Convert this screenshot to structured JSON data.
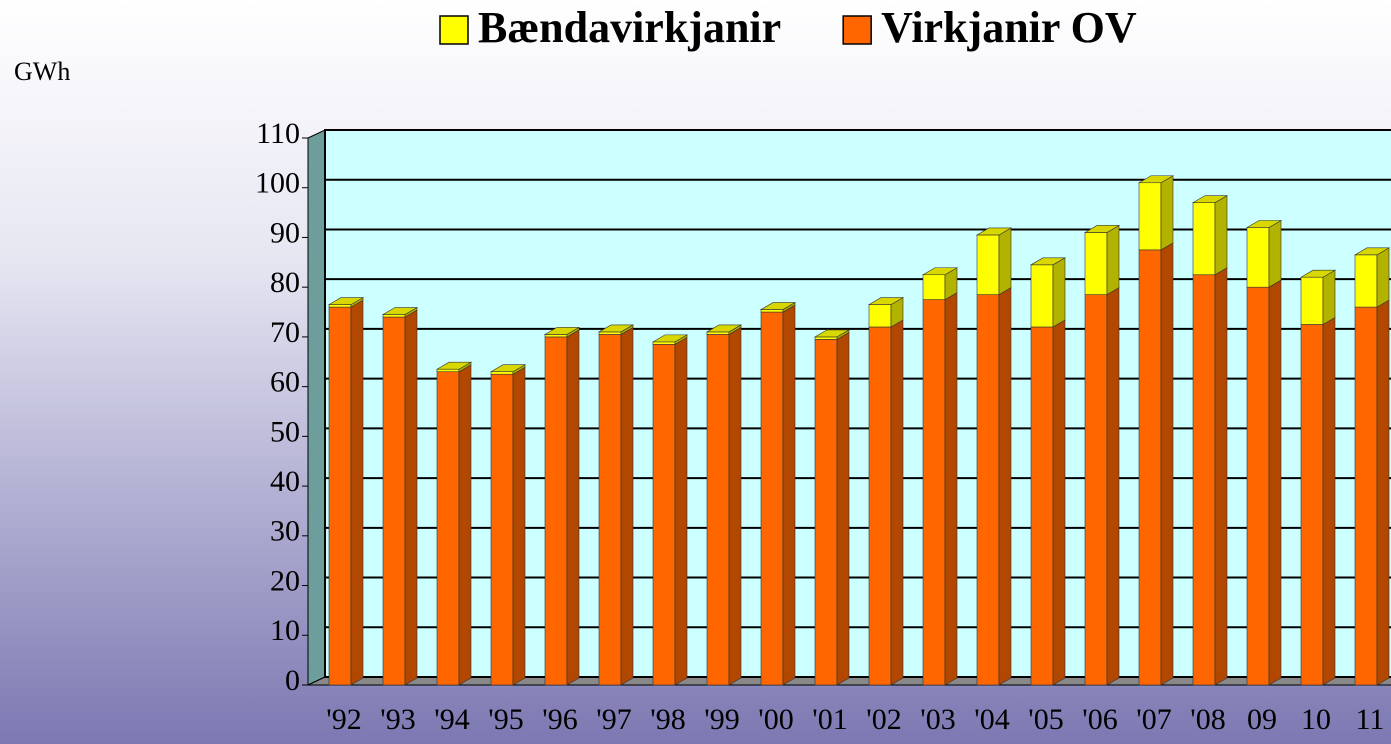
{
  "chart_data": {
    "type": "bar",
    "stacked": true,
    "y_label": "GWh",
    "categories": [
      "'92",
      "'93",
      "'94",
      "'95",
      "'96",
      "'97",
      "'98",
      "'99",
      "'00",
      "'01",
      "'02",
      "'03",
      "'04",
      "'05",
      "'06",
      "'07",
      "'08",
      "09",
      "10",
      "11"
    ],
    "series": [
      {
        "name": "Virkjanir OV",
        "color": "#ff6600",
        "values": [
          76,
          74,
          63,
          62.5,
          70,
          70.5,
          68.5,
          70.5,
          75,
          69.5,
          72,
          77.5,
          78.5,
          72,
          78.5,
          87.5,
          82.5,
          80,
          72.5,
          76
        ]
      },
      {
        "name": "Bændavirkjanir",
        "color": "#ffff00",
        "values": [
          0.5,
          0.5,
          0.5,
          0.5,
          0.5,
          0.5,
          0.5,
          0.5,
          0.5,
          0.5,
          4.5,
          5,
          12,
          12.5,
          12.5,
          13.5,
          14.5,
          12,
          9.5,
          10.5
        ]
      }
    ],
    "legend_order": [
      1,
      0
    ],
    "ylim": [
      0,
      110
    ],
    "yticks": [
      0,
      10,
      20,
      30,
      40,
      50,
      60,
      70,
      80,
      90,
      100,
      110
    ],
    "grid": true
  }
}
